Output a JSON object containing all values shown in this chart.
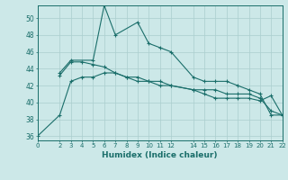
{
  "xlabel": "Humidex (Indice chaleur)",
  "background_color": "#cce8e8",
  "grid_color": "#aacece",
  "line_color": "#1a6e6a",
  "xlim": [
    0,
    22
  ],
  "ylim": [
    35.5,
    51.5
  ],
  "yticks": [
    36,
    38,
    40,
    42,
    44,
    46,
    48,
    50
  ],
  "xticks": [
    0,
    2,
    3,
    4,
    5,
    6,
    7,
    8,
    9,
    10,
    11,
    12,
    14,
    15,
    16,
    17,
    18,
    19,
    20,
    21,
    22
  ],
  "series": [
    {
      "x": [
        0,
        2,
        3,
        4,
        5,
        6,
        7,
        8,
        9,
        10,
        11,
        12,
        14,
        15,
        16,
        17,
        18,
        19,
        20,
        21,
        22
      ],
      "y": [
        36,
        38.5,
        42.5,
        43,
        43,
        43.5,
        43.5,
        43,
        42.5,
        42.5,
        42,
        42,
        41.5,
        41.5,
        41.5,
        41,
        41,
        41,
        40.5,
        39,
        38.5
      ]
    },
    {
      "x": [
        2,
        3,
        5,
        6,
        7,
        9,
        10,
        11,
        12,
        14,
        15,
        16,
        17,
        18,
        19,
        20,
        21,
        22
      ],
      "y": [
        43.5,
        45,
        45,
        51.5,
        48,
        49.5,
        47,
        46.5,
        46,
        43,
        42.5,
        42.5,
        42.5,
        42,
        41.5,
        41,
        38.5,
        38.5
      ]
    },
    {
      "x": [
        2,
        3,
        4,
        5,
        6,
        7,
        8,
        9,
        10,
        11,
        12,
        14,
        15,
        16,
        17,
        18,
        19,
        20,
        21,
        22
      ],
      "y": [
        43.2,
        44.8,
        44.8,
        44.5,
        44.2,
        43.5,
        43,
        43,
        42.5,
        42.5,
        42,
        41.5,
        41,
        40.5,
        40.5,
        40.5,
        40.5,
        40.2,
        40.8,
        38.5
      ]
    }
  ]
}
